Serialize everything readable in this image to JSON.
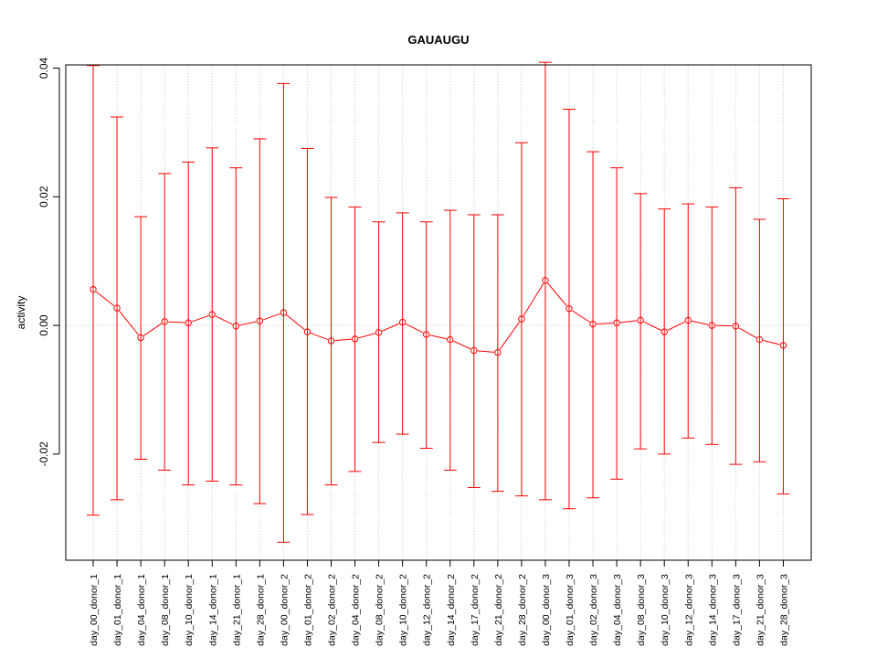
{
  "chart_data": {
    "type": "line",
    "title": "GAUAUGU",
    "xlabel": "",
    "ylabel": "activity",
    "ylim": [
      -0.0365,
      0.0405
    ],
    "yticks": [
      -0.02,
      0.0,
      0.02,
      0.04
    ],
    "ytick_labels": [
      "-0.02",
      "0.00",
      "0.02",
      "0.04"
    ],
    "grid": true,
    "error_bars": true,
    "colors": {
      "series": "#ff0000",
      "grid": "#c8c8c8",
      "axis": "#000000"
    },
    "categories": [
      "day_00_donor_1",
      "day_01_donor_1",
      "day_04_donor_1",
      "day_08_donor_1",
      "day_10_donor_1",
      "day_14_donor_1",
      "day_21_donor_1",
      "day_28_donor_1",
      "day_00_donor_2",
      "day_01_donor_2",
      "day_02_donor_2",
      "day_04_donor_2",
      "day_08_donor_2",
      "day_10_donor_2",
      "day_12_donor_2",
      "day_14_donor_2",
      "day_17_donor_2",
      "day_21_donor_2",
      "day_28_donor_2",
      "day_00_donor_3",
      "day_01_donor_3",
      "day_02_donor_3",
      "day_04_donor_3",
      "day_08_donor_3",
      "day_10_donor_3",
      "day_12_donor_3",
      "day_14_donor_3",
      "day_17_donor_3",
      "day_21_donor_3",
      "day_28_donor_3"
    ],
    "values": [
      0.0056,
      0.0027,
      -0.0019,
      0.0006,
      0.0004,
      0.0017,
      -0.0001,
      0.0007,
      0.002,
      -0.001,
      -0.0024,
      -0.0021,
      -0.0011,
      0.0005,
      -0.0014,
      -0.0022,
      -0.0039,
      -0.0042,
      0.001,
      0.007,
      0.0026,
      0.0002,
      0.0004,
      0.0008,
      -0.001,
      0.0008,
      0.0,
      -0.0001,
      -0.0022,
      -0.0031
    ],
    "upper": [
      0.0404,
      0.0324,
      0.0169,
      0.0236,
      0.0254,
      0.0276,
      0.0245,
      0.029,
      0.0376,
      0.0275,
      0.0199,
      0.0184,
      0.0161,
      0.0175,
      0.0161,
      0.0179,
      0.0172,
      0.0172,
      0.0284,
      0.0409,
      0.0336,
      0.027,
      0.0245,
      0.0205,
      0.0181,
      0.0189,
      0.0184,
      0.0214,
      0.0165,
      0.0197
    ],
    "lower": [
      -0.0295,
      -0.0271,
      -0.0208,
      -0.0225,
      -0.0248,
      -0.0242,
      -0.0248,
      -0.0277,
      -0.0337,
      -0.0294,
      -0.0248,
      -0.0227,
      -0.0182,
      -0.0169,
      -0.0191,
      -0.0225,
      -0.0252,
      -0.0258,
      -0.0265,
      -0.0271,
      -0.0285,
      -0.0268,
      -0.0239,
      -0.0192,
      -0.02,
      -0.0175,
      -0.0185,
      -0.0216,
      -0.0212,
      -0.0262
    ]
  }
}
